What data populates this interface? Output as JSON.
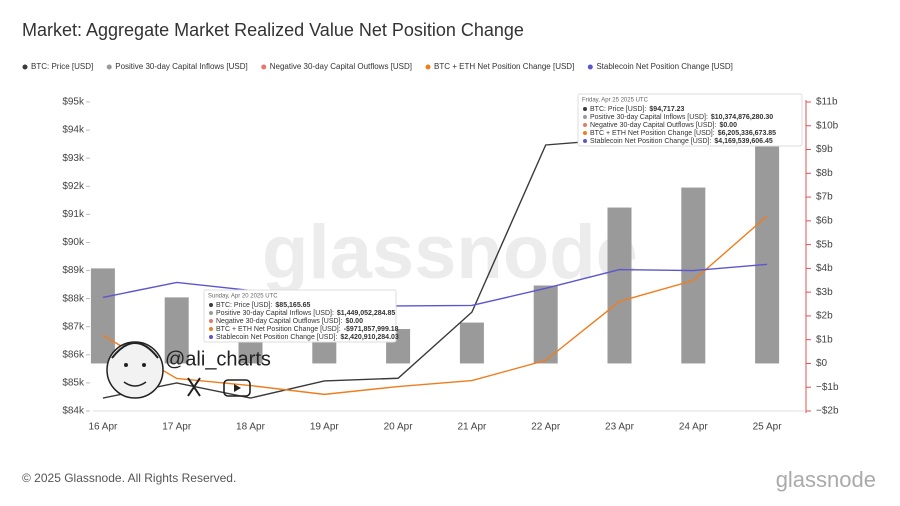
{
  "chart_data": {
    "type": "combo",
    "title": "Market: Aggregate Market Realized Value Net Position Change",
    "categories": [
      "16 Apr",
      "17 Apr",
      "18 Apr",
      "19 Apr",
      "20 Apr",
      "21 Apr",
      "22 Apr",
      "23 Apr",
      "24 Apr",
      "25 Apr"
    ],
    "series": [
      {
        "name": "BTC: Price [USD]",
        "type": "line",
        "axis": "y",
        "color": "#3a3a3a",
        "values": [
          84460,
          85000,
          84460,
          85070,
          85165.65,
          87520,
          93470,
          93680,
          93610,
          94717.23
        ]
      },
      {
        "name": "Positive 30-day Capital Inflows [USD]",
        "type": "bar",
        "axis": "y2",
        "color": "#9a9a9a",
        "values": [
          4000000000,
          2780000000,
          2300000000,
          1800000000,
          1449052284.85,
          1720000000,
          3280000000,
          6560000000,
          7400000000,
          10374876280.3
        ]
      },
      {
        "name": "Negative 30-day Capital Outflows [USD]",
        "type": "bar",
        "axis": "y2",
        "color": "#e8776b",
        "values": [
          0,
          0,
          0,
          0,
          0,
          0,
          0,
          0,
          0,
          0
        ]
      },
      {
        "name": "BTC + ETH Net Position Change [USD]",
        "type": "line",
        "axis": "y2",
        "color": "#f07d1e",
        "values": [
          1180000000,
          -630000000,
          -930000000,
          -1300000000,
          -971857999.18,
          -720000000,
          130000000,
          2610000000,
          3490000000,
          6205336673.85
        ]
      },
      {
        "name": "Stablecoin Net Position Change [USD]",
        "type": "line",
        "axis": "y2",
        "color": "#5b56d0",
        "values": [
          2780000000,
          3410000000,
          3070000000,
          2500000000,
          2420910284.03,
          2440000000,
          3160000000,
          3950000000,
          3910000000,
          4169539606.45
        ]
      }
    ],
    "ylim": [
      84000,
      95000
    ],
    "yticks": [
      {
        "value": 84000,
        "label": "$84k"
      },
      {
        "value": 85000,
        "label": "$85k"
      },
      {
        "value": 86000,
        "label": "$86k"
      },
      {
        "value": 87000,
        "label": "$87k"
      },
      {
        "value": 88000,
        "label": "$88k"
      },
      {
        "value": 89000,
        "label": "$89k"
      },
      {
        "value": 90000,
        "label": "$90k"
      },
      {
        "value": 91000,
        "label": "$91k"
      },
      {
        "value": 92000,
        "label": "$92k"
      },
      {
        "value": 93000,
        "label": "$93k"
      },
      {
        "value": 94000,
        "label": "$94k"
      },
      {
        "value": 95000,
        "label": "$95k"
      }
    ],
    "y2lim": [
      -2000000000,
      11000000000
    ],
    "y2ticks": [
      {
        "value": -2000000000,
        "label": "−$2b"
      },
      {
        "value": -1000000000,
        "label": "−$1b"
      },
      {
        "value": 0,
        "label": "$0"
      },
      {
        "value": 1000000000,
        "label": "$1b"
      },
      {
        "value": 2000000000,
        "label": "$2b"
      },
      {
        "value": 3000000000,
        "label": "$3b"
      },
      {
        "value": 4000000000,
        "label": "$4b"
      },
      {
        "value": 5000000000,
        "label": "$5b"
      },
      {
        "value": 6000000000,
        "label": "$6b"
      },
      {
        "value": 7000000000,
        "label": "$7b"
      },
      {
        "value": 8000000000,
        "label": "$8b"
      },
      {
        "value": 9000000000,
        "label": "$9b"
      },
      {
        "value": 10000000000,
        "label": "$10b"
      },
      {
        "value": 11000000000,
        "label": "$11b"
      }
    ],
    "grid": false,
    "legend": "top-left",
    "tooltips": [
      {
        "title": "Friday, Apr 25 2025 UTC",
        "rows": [
          {
            "label": "BTC: Price [USD]:",
            "value": "$94,717.23"
          },
          {
            "label": "Positive 30-day Capital Inflows [USD]:",
            "value": "$10,374,876,280.30"
          },
          {
            "label": "Negative 30-day Capital Outflows [USD]:",
            "value": "$0.00"
          },
          {
            "label": "BTC + ETH Net Position Change [USD]:",
            "value": "$6,205,336,673.85"
          },
          {
            "label": "Stablecoin Net Position Change [USD]:",
            "value": "$4,169,539,606.45"
          }
        ]
      },
      {
        "title": "Sunday, Apr 20 2025 UTC",
        "rows": [
          {
            "label": "BTC: Price [USD]:",
            "value": "$85,165.65"
          },
          {
            "label": "Positive 30-day Capital Inflows [USD]:",
            "value": "$1,449,052,284.85"
          },
          {
            "label": "Negative 30-day Capital Outflows [USD]:",
            "value": "$0.00"
          },
          {
            "label": "BTC + ETH Net Position Change [USD]:",
            "value": "-$971,857,999.18"
          },
          {
            "label": "Stablecoin Net Position Change [USD]:",
            "value": "$2,420,910,284.03"
          }
        ]
      }
    ]
  },
  "watermark": "glassnode",
  "handle": "@ali_charts",
  "footer": {
    "copyright": "© 2025 Glassnode. All Rights Reserved.",
    "logo": "glassnode"
  }
}
